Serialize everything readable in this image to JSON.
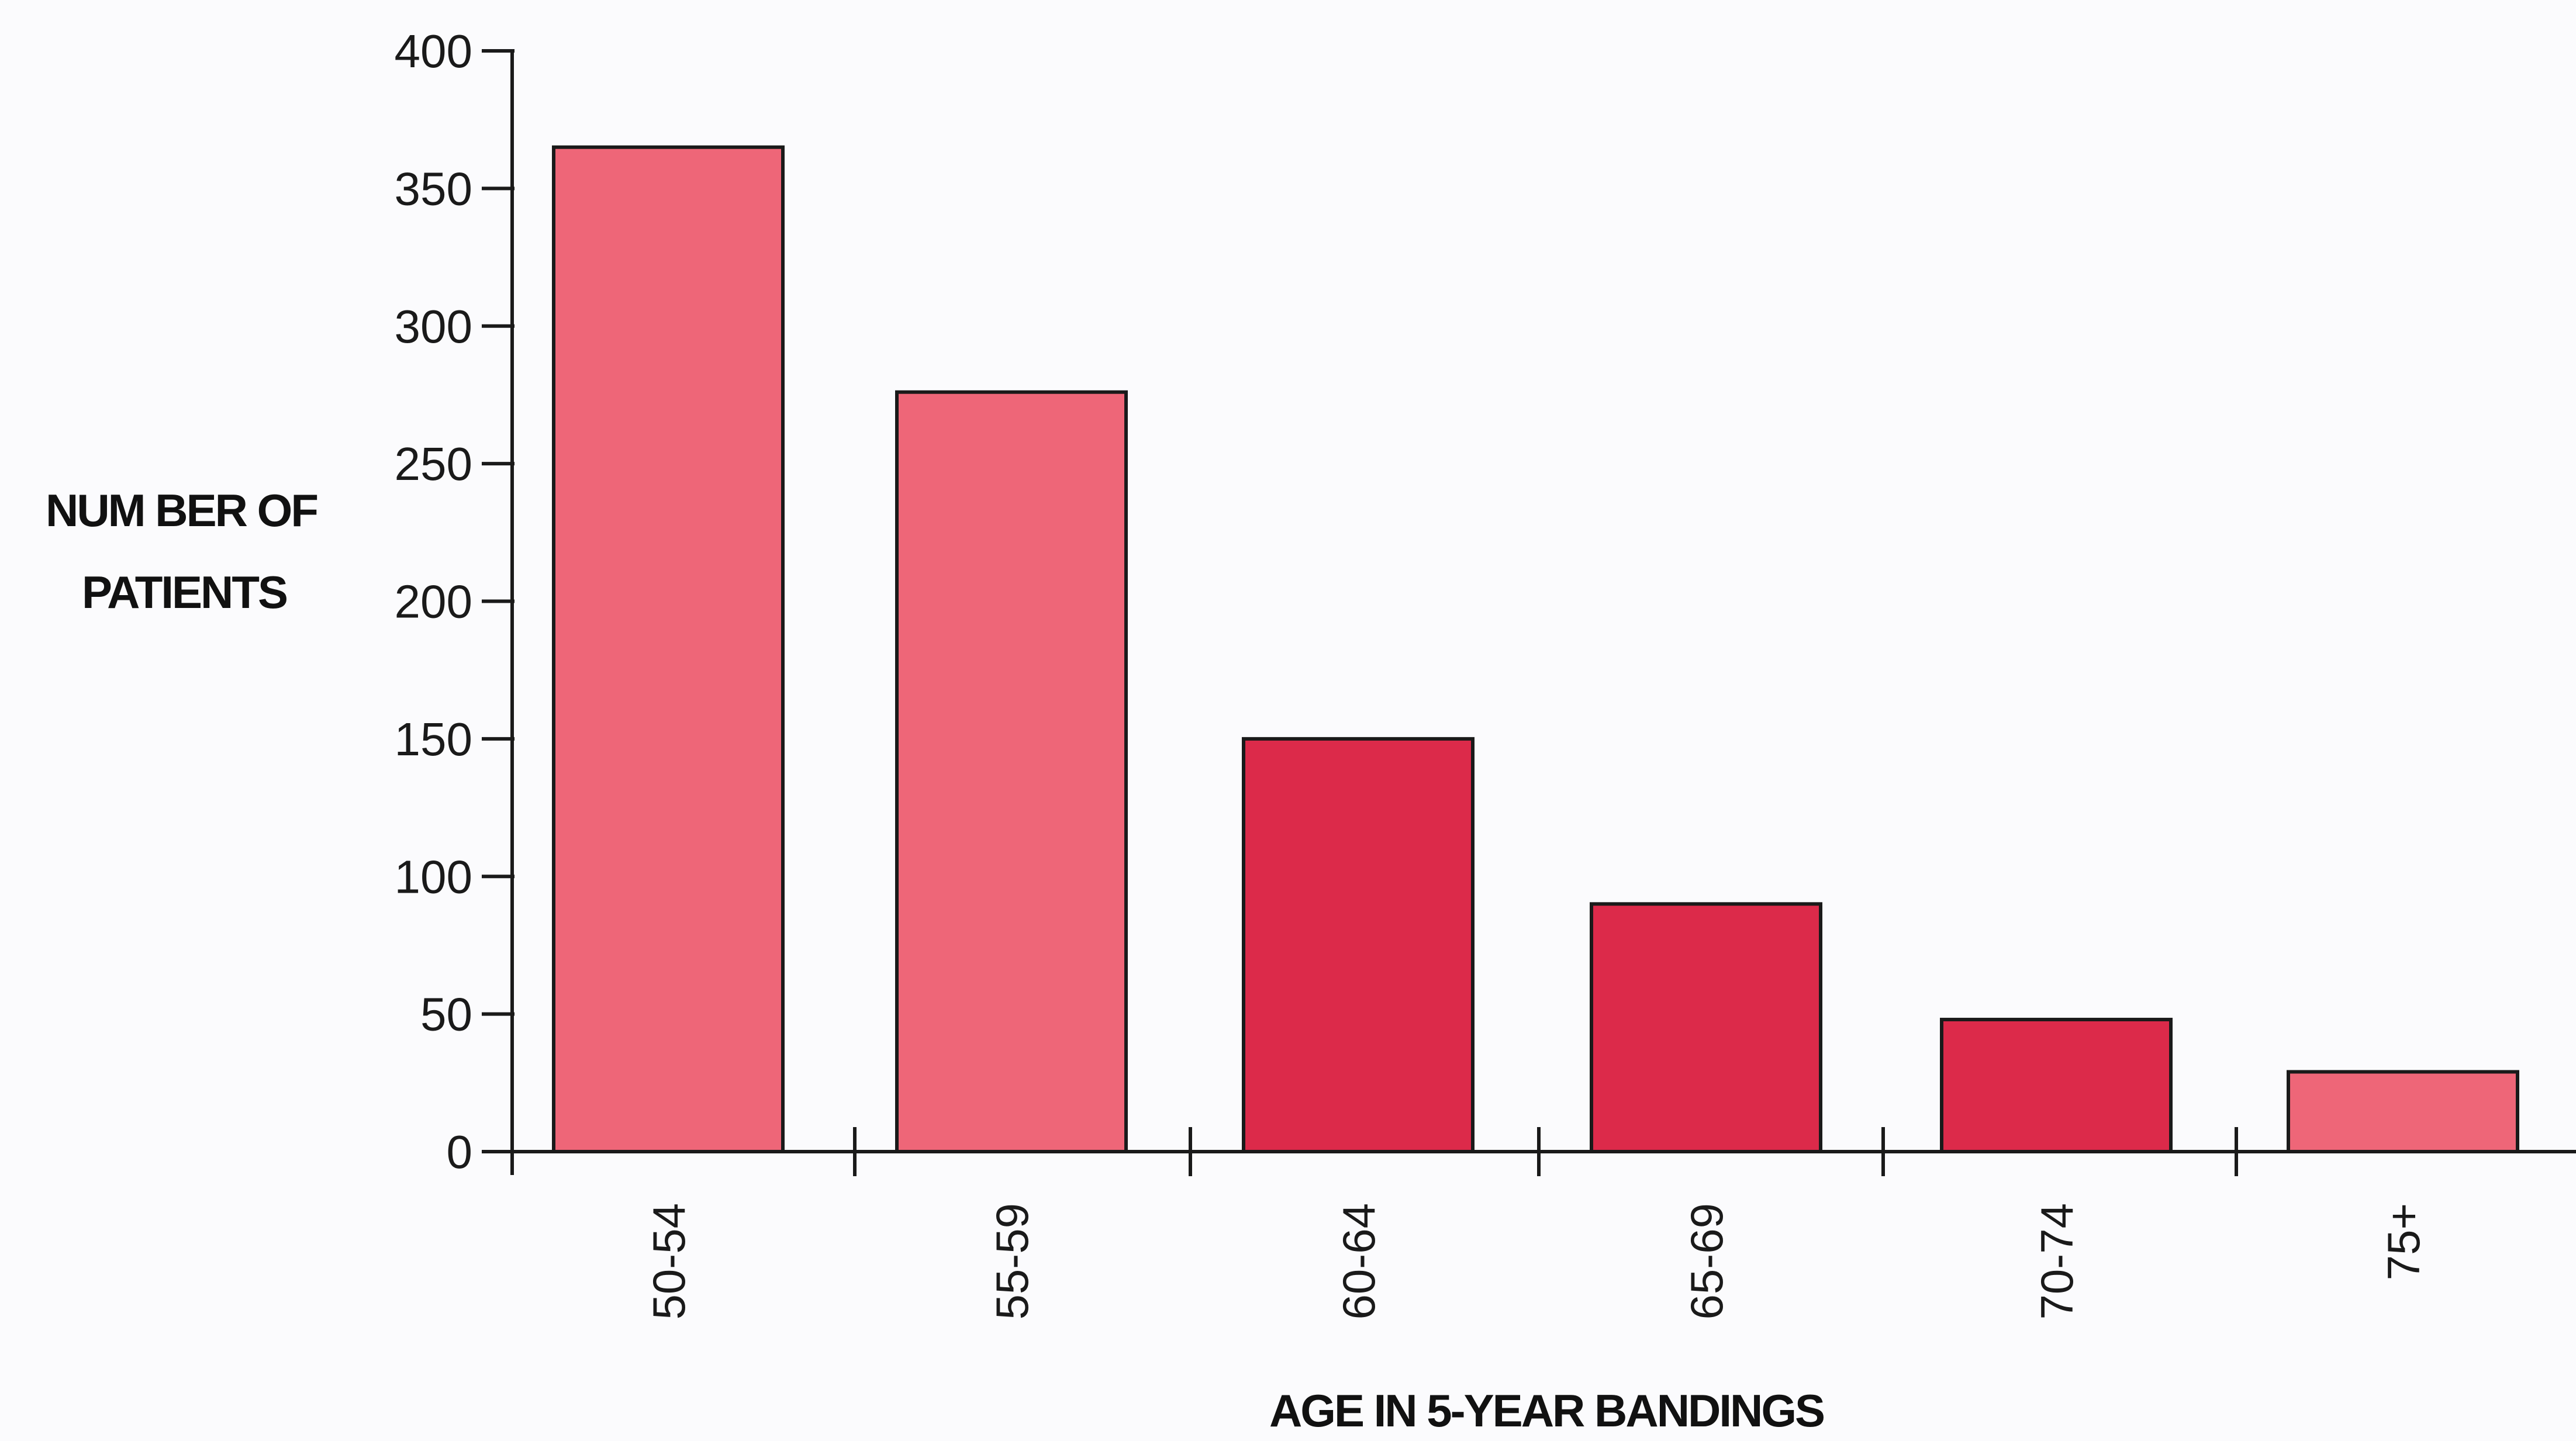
{
  "chart_data": {
    "type": "bar",
    "title": "",
    "xlabel": "AGE IN 5-YEAR BANDINGS",
    "ylabel_lines": [
      "NUM BER OF",
      "PATIENTS"
    ],
    "categories": [
      "50-54",
      "55-59",
      "60-64",
      "65-69",
      "70-74",
      "75+"
    ],
    "values": [
      365,
      276,
      150,
      90,
      48,
      29
    ],
    "bar_colors": [
      "#ee6678",
      "#ee6678",
      "#dc2a4a",
      "#dc2a4a",
      "#dc2a4a",
      "#ee6678"
    ],
    "ylim": [
      0,
      400
    ],
    "yticks": [
      0,
      50,
      100,
      150,
      200,
      250,
      300,
      350,
      400
    ],
    "grid": false,
    "legend": "none"
  }
}
